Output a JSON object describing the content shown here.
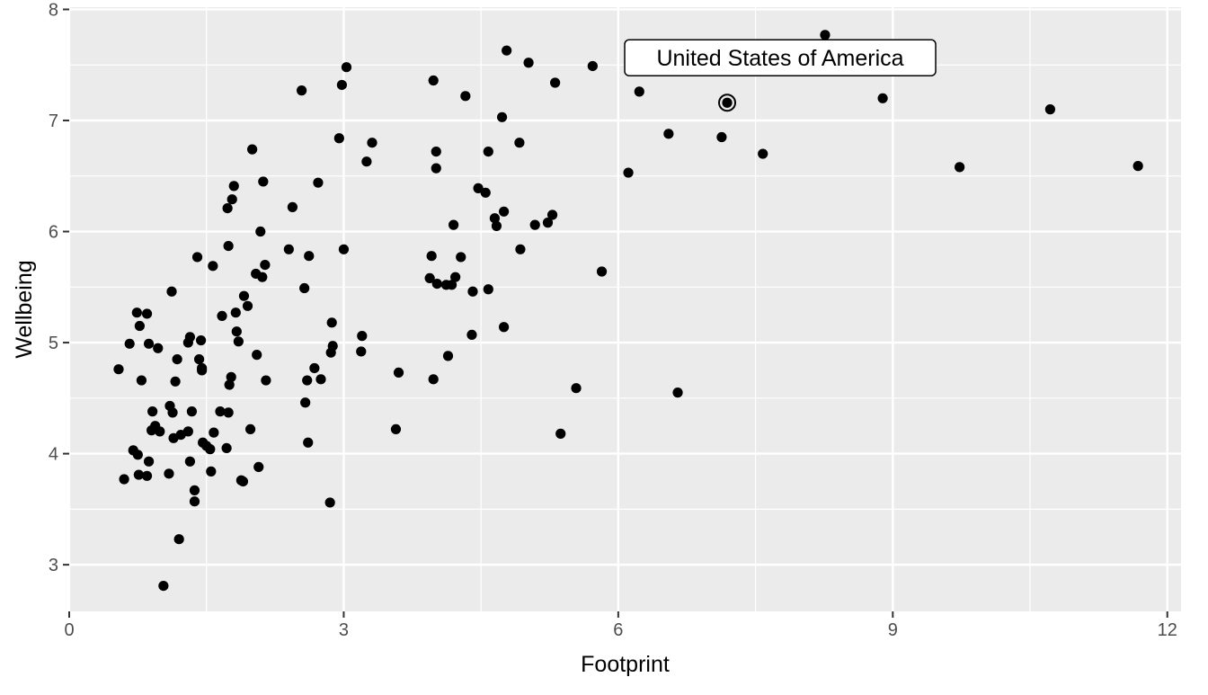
{
  "chart_data": {
    "type": "scatter",
    "xlabel": "Footprint",
    "ylabel": "Wellbeing",
    "xlim": [
      0,
      12.15
    ],
    "ylim": [
      2.58,
      8.02
    ],
    "x_ticks": [
      0,
      3,
      6,
      9,
      12
    ],
    "x_tick_labels": [
      "0",
      "3",
      "6",
      "9",
      "12"
    ],
    "y_ticks": [
      3,
      4,
      5,
      6,
      7,
      8
    ],
    "y_tick_labels": [
      "3",
      "4",
      "5",
      "6",
      "7",
      "8"
    ],
    "grid": true,
    "annotations": [
      {
        "text": "United States of America",
        "x": 7.19,
        "y": 7.16
      }
    ],
    "colors": {
      "panel": "#ebebeb",
      "grid": "#ffffff",
      "point": "#000000",
      "axis_text": "#4d4d4d"
    },
    "points": [
      [
        0.54,
        4.76
      ],
      [
        0.6,
        3.77
      ],
      [
        0.66,
        4.99
      ],
      [
        0.7,
        4.03
      ],
      [
        0.74,
        5.27
      ],
      [
        0.75,
        3.99
      ],
      [
        0.76,
        3.81
      ],
      [
        0.77,
        5.15
      ],
      [
        0.79,
        4.66
      ],
      [
        0.85,
        5.26
      ],
      [
        0.85,
        3.8
      ],
      [
        0.87,
        4.99
      ],
      [
        0.87,
        3.93
      ],
      [
        0.9,
        4.21
      ],
      [
        0.91,
        4.38
      ],
      [
        0.94,
        4.25
      ],
      [
        0.97,
        4.95
      ],
      [
        0.99,
        4.2
      ],
      [
        1.03,
        2.81
      ],
      [
        1.09,
        3.82
      ],
      [
        1.1,
        4.43
      ],
      [
        1.12,
        5.46
      ],
      [
        1.13,
        4.37
      ],
      [
        1.14,
        4.14
      ],
      [
        1.16,
        4.65
      ],
      [
        1.18,
        4.85
      ],
      [
        1.2,
        3.23
      ],
      [
        1.22,
        4.17
      ],
      [
        1.3,
        5.0
      ],
      [
        1.3,
        4.2
      ],
      [
        1.32,
        5.05
      ],
      [
        1.32,
        3.93
      ],
      [
        1.34,
        4.38
      ],
      [
        1.37,
        3.67
      ],
      [
        1.37,
        3.57
      ],
      [
        1.4,
        5.77
      ],
      [
        1.42,
        4.85
      ],
      [
        1.44,
        5.02
      ],
      [
        1.45,
        4.77
      ],
      [
        1.45,
        4.75
      ],
      [
        1.46,
        4.1
      ],
      [
        1.5,
        4.07
      ],
      [
        1.54,
        4.04
      ],
      [
        1.55,
        3.84
      ],
      [
        1.57,
        5.69
      ],
      [
        1.58,
        4.19
      ],
      [
        1.65,
        4.38
      ],
      [
        1.67,
        5.24
      ],
      [
        1.72,
        4.05
      ],
      [
        1.73,
        6.21
      ],
      [
        1.74,
        5.87
      ],
      [
        1.74,
        4.37
      ],
      [
        1.75,
        4.62
      ],
      [
        1.77,
        4.69
      ],
      [
        1.78,
        6.29
      ],
      [
        1.8,
        6.41
      ],
      [
        1.82,
        5.27
      ],
      [
        1.83,
        5.1
      ],
      [
        1.85,
        5.01
      ],
      [
        1.88,
        3.76
      ],
      [
        1.9,
        3.75
      ],
      [
        1.91,
        5.42
      ],
      [
        1.95,
        5.33
      ],
      [
        1.98,
        4.22
      ],
      [
        2.0,
        6.74
      ],
      [
        2.04,
        5.62
      ],
      [
        2.05,
        4.89
      ],
      [
        2.07,
        3.88
      ],
      [
        2.09,
        6.0
      ],
      [
        2.11,
        5.59
      ],
      [
        2.12,
        6.45
      ],
      [
        2.14,
        5.7
      ],
      [
        2.15,
        4.66
      ],
      [
        2.4,
        5.84
      ],
      [
        2.44,
        6.22
      ],
      [
        2.54,
        7.27
      ],
      [
        2.57,
        5.49
      ],
      [
        2.58,
        4.46
      ],
      [
        2.6,
        4.66
      ],
      [
        2.61,
        4.1
      ],
      [
        2.62,
        5.78
      ],
      [
        2.68,
        4.77
      ],
      [
        2.72,
        6.44
      ],
      [
        2.75,
        4.67
      ],
      [
        2.85,
        3.56
      ],
      [
        2.86,
        4.91
      ],
      [
        2.87,
        5.18
      ],
      [
        2.88,
        4.97
      ],
      [
        2.95,
        6.84
      ],
      [
        2.98,
        7.32
      ],
      [
        3.0,
        5.84
      ],
      [
        3.03,
        7.48
      ],
      [
        3.19,
        4.92
      ],
      [
        3.2,
        5.06
      ],
      [
        3.25,
        6.63
      ],
      [
        3.31,
        6.8
      ],
      [
        3.57,
        4.22
      ],
      [
        3.6,
        4.73
      ],
      [
        3.94,
        5.58
      ],
      [
        3.96,
        5.78
      ],
      [
        3.98,
        7.36
      ],
      [
        3.98,
        4.67
      ],
      [
        4.01,
        6.57
      ],
      [
        4.01,
        6.72
      ],
      [
        4.02,
        5.53
      ],
      [
        4.12,
        5.52
      ],
      [
        4.14,
        4.88
      ],
      [
        4.18,
        5.52
      ],
      [
        4.2,
        6.06
      ],
      [
        4.22,
        5.59
      ],
      [
        4.28,
        5.77
      ],
      [
        4.33,
        7.22
      ],
      [
        4.4,
        5.07
      ],
      [
        4.41,
        5.46
      ],
      [
        4.47,
        6.39
      ],
      [
        4.55,
        6.35
      ],
      [
        4.58,
        6.72
      ],
      [
        4.58,
        5.48
      ],
      [
        4.65,
        6.12
      ],
      [
        4.67,
        6.05
      ],
      [
        4.73,
        7.03
      ],
      [
        4.75,
        5.14
      ],
      [
        4.75,
        6.18
      ],
      [
        4.78,
        7.63
      ],
      [
        4.92,
        6.8
      ],
      [
        4.93,
        5.84
      ],
      [
        5.02,
        7.52
      ],
      [
        5.09,
        6.06
      ],
      [
        5.23,
        6.08
      ],
      [
        5.28,
        6.15
      ],
      [
        5.31,
        7.34
      ],
      [
        5.37,
        4.18
      ],
      [
        5.54,
        4.59
      ],
      [
        5.72,
        7.49
      ],
      [
        5.82,
        5.64
      ],
      [
        6.11,
        6.53
      ],
      [
        6.23,
        7.26
      ],
      [
        6.44,
        7.65
      ],
      [
        6.55,
        6.88
      ],
      [
        6.65,
        4.55
      ],
      [
        7.13,
        6.85
      ],
      [
        7.19,
        7.16
      ],
      [
        7.58,
        6.7
      ],
      [
        8.26,
        7.77
      ],
      [
        8.89,
        7.2
      ],
      [
        9.73,
        6.58
      ],
      [
        10.72,
        7.1
      ],
      [
        11.68,
        6.59
      ]
    ]
  }
}
